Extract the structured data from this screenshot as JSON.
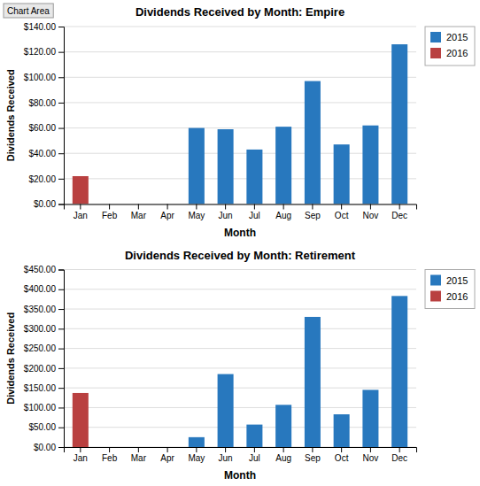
{
  "chart_data": [
    {
      "type": "bar",
      "title": "Dividends Received by Month: Empire",
      "categories": [
        "Jan",
        "Feb",
        "Mar",
        "Apr",
        "May",
        "Jun",
        "Jul",
        "Aug",
        "Sep",
        "Oct",
        "Nov",
        "Dec"
      ],
      "series": [
        {
          "name": "2015",
          "color": "#2878BE",
          "values": [
            0,
            0,
            0,
            0,
            60,
            59,
            43,
            61,
            97,
            47,
            62,
            126
          ]
        },
        {
          "name": "2016",
          "color": "#B94040",
          "values": [
            22,
            0,
            0,
            0,
            0,
            0,
            0,
            0,
            0,
            0,
            0,
            0
          ]
        }
      ],
      "ylim": [
        0,
        140
      ],
      "yticks": [
        {
          "value": 0,
          "label": "$0.00"
        },
        {
          "value": 20,
          "label": "$20.00"
        },
        {
          "value": 40,
          "label": "$40.00"
        },
        {
          "value": 60,
          "label": "$60.00"
        },
        {
          "value": 80,
          "label": "$80.00"
        },
        {
          "value": 100,
          "label": "$100.00"
        },
        {
          "value": 120,
          "label": "$120.00"
        },
        {
          "value": 140,
          "label": "$140.00"
        }
      ],
      "ylabel": "Dividends Received",
      "xlabel": "Month",
      "grid": true,
      "legend": "right",
      "annotations": [
        "Chart Area"
      ]
    },
    {
      "type": "bar",
      "title": "Dividends Received by Month: Retirement",
      "categories": [
        "Jan",
        "Feb",
        "Mar",
        "Apr",
        "May",
        "Jun",
        "Jul",
        "Aug",
        "Sep",
        "Oct",
        "Nov",
        "Dec"
      ],
      "series": [
        {
          "name": "2015",
          "color": "#2878BE",
          "values": [
            0,
            0,
            0,
            0,
            25,
            185,
            57,
            107,
            330,
            83,
            145,
            383
          ]
        },
        {
          "name": "2016",
          "color": "#B94040",
          "values": [
            137,
            0,
            0,
            0,
            0,
            0,
            0,
            0,
            0,
            0,
            0,
            0
          ]
        }
      ],
      "ylim": [
        0,
        450
      ],
      "yticks": [
        {
          "value": 0,
          "label": "$0.00"
        },
        {
          "value": 50,
          "label": "$50.00"
        },
        {
          "value": 100,
          "label": "$100.00"
        },
        {
          "value": 150,
          "label": "$150.00"
        },
        {
          "value": 200,
          "label": "$200.00"
        },
        {
          "value": 250,
          "label": "$250.00"
        },
        {
          "value": 300,
          "label": "$300.00"
        },
        {
          "value": 350,
          "label": "$350.00"
        },
        {
          "value": 400,
          "label": "$400.00"
        },
        {
          "value": 450,
          "label": "$450.00"
        }
      ],
      "ylabel": "Dividends Received",
      "xlabel": "Month",
      "grid": true,
      "legend": "right"
    }
  ]
}
